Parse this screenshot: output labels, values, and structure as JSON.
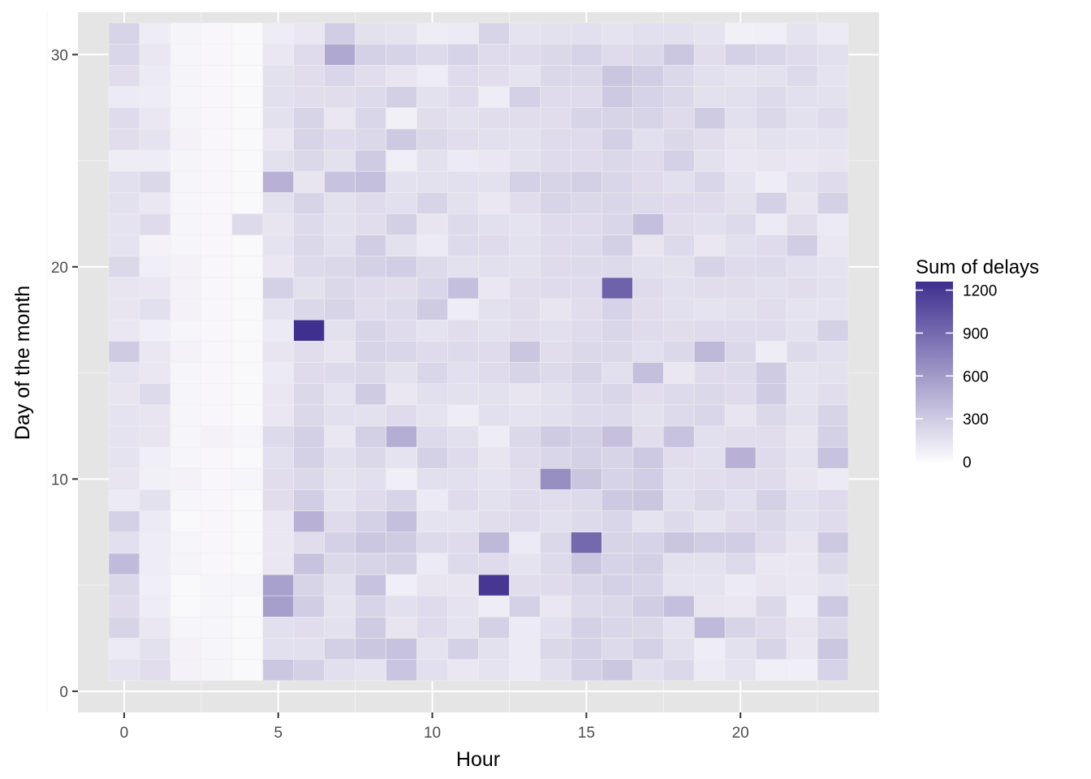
{
  "chart_data": {
    "type": "heatmap",
    "title": "",
    "xlabel": "Hour",
    "ylabel": "Day of the month",
    "x": [
      0,
      1,
      2,
      3,
      4,
      5,
      6,
      7,
      8,
      9,
      10,
      11,
      12,
      13,
      14,
      15,
      16,
      17,
      18,
      19,
      20,
      21,
      22,
      23
    ],
    "y": [
      1,
      2,
      3,
      4,
      5,
      6,
      7,
      8,
      9,
      10,
      11,
      12,
      13,
      14,
      15,
      16,
      17,
      18,
      19,
      20,
      21,
      22,
      23,
      24,
      25,
      26,
      27,
      28,
      29,
      30,
      31
    ],
    "xlim": [
      -1.5,
      24.5
    ],
    "ylim": [
      -1,
      32
    ],
    "x_ticks": [
      0,
      5,
      10,
      15,
      20
    ],
    "x_tick_labels": [
      "0",
      "5",
      "10",
      "15",
      "20"
    ],
    "y_ticks": [
      0,
      10,
      20,
      30
    ],
    "y_tick_labels": [
      "0",
      "10",
      "20",
      "30"
    ],
    "grid": true,
    "legend": {
      "title": "Sum of delays",
      "placement": "right",
      "ticks": [
        0,
        300,
        600,
        900,
        1200
      ],
      "tick_labels": [
        "0",
        "300",
        "600",
        "900",
        "1200"
      ],
      "range": [
        0,
        1260
      ],
      "low_color": "#fcfbfd",
      "high_color": "#3f2f8f"
    },
    "colors": {
      "panel_background": "#e5e5e5",
      "grid_major": "#ffffff",
      "tile_border": "#eeeeee",
      "tick_text": "#4d4d4d"
    },
    "values": [
      [
        100,
        130,
        30,
        25,
        10,
        250,
        200,
        120,
        100,
        270,
        120,
        80,
        100,
        70,
        120,
        200,
        250,
        120,
        160,
        70,
        100,
        50,
        50,
        190
      ],
      [
        70,
        110,
        30,
        20,
        10,
        120,
        120,
        210,
        250,
        280,
        100,
        200,
        110,
        70,
        160,
        200,
        150,
        200,
        120,
        60,
        110,
        180,
        80,
        250
      ],
      [
        180,
        80,
        20,
        20,
        10,
        120,
        130,
        110,
        230,
        90,
        140,
        100,
        200,
        70,
        120,
        200,
        170,
        160,
        100,
        330,
        180,
        140,
        90,
        160
      ],
      [
        140,
        60,
        10,
        20,
        10,
        500,
        220,
        100,
        180,
        120,
        140,
        100,
        60,
        200,
        80,
        150,
        160,
        220,
        300,
        90,
        80,
        160,
        60,
        240
      ],
      [
        160,
        50,
        10,
        20,
        20,
        480,
        180,
        120,
        280,
        50,
        90,
        90,
        1200,
        130,
        140,
        170,
        200,
        180,
        100,
        100,
        70,
        90,
        80,
        100
      ],
      [
        320,
        60,
        25,
        15,
        10,
        80,
        280,
        160,
        180,
        200,
        70,
        150,
        140,
        100,
        150,
        250,
        190,
        210,
        110,
        110,
        150,
        80,
        80,
        160
      ],
      [
        120,
        60,
        20,
        15,
        10,
        80,
        130,
        200,
        250,
        230,
        150,
        140,
        340,
        70,
        160,
        850,
        180,
        190,
        260,
        220,
        220,
        140,
        90,
        240
      ],
      [
        200,
        70,
        10,
        15,
        10,
        80,
        380,
        140,
        200,
        300,
        100,
        100,
        130,
        140,
        120,
        150,
        170,
        100,
        150,
        100,
        140,
        160,
        120,
        140
      ],
      [
        70,
        110,
        20,
        15,
        10,
        130,
        220,
        100,
        140,
        180,
        70,
        140,
        110,
        140,
        130,
        150,
        240,
        260,
        120,
        160,
        120,
        200,
        120,
        140
      ],
      [
        90,
        40,
        30,
        15,
        20,
        130,
        160,
        100,
        120,
        50,
        120,
        120,
        100,
        130,
        600,
        260,
        190,
        220,
        120,
        130,
        140,
        140,
        90,
        70
      ],
      [
        100,
        50,
        20,
        15,
        10,
        120,
        200,
        120,
        160,
        100,
        200,
        140,
        90,
        140,
        170,
        200,
        180,
        240,
        130,
        120,
        380,
        140,
        100,
        280
      ],
      [
        100,
        90,
        20,
        30,
        20,
        150,
        210,
        80,
        210,
        400,
        150,
        120,
        60,
        160,
        230,
        200,
        290,
        130,
        280,
        120,
        130,
        130,
        90,
        200
      ],
      [
        100,
        90,
        20,
        15,
        10,
        80,
        160,
        120,
        110,
        140,
        100,
        60,
        120,
        100,
        120,
        150,
        150,
        110,
        150,
        170,
        90,
        160,
        110,
        180
      ],
      [
        90,
        150,
        20,
        15,
        10,
        80,
        160,
        100,
        230,
        80,
        120,
        110,
        110,
        90,
        110,
        150,
        170,
        130,
        150,
        160,
        140,
        230,
        100,
        130
      ],
      [
        100,
        80,
        20,
        15,
        10,
        70,
        140,
        150,
        160,
        110,
        170,
        120,
        140,
        180,
        150,
        180,
        120,
        300,
        80,
        140,
        150,
        230,
        100,
        110
      ],
      [
        230,
        80,
        30,
        15,
        10,
        90,
        130,
        90,
        180,
        170,
        140,
        150,
        140,
        260,
        130,
        160,
        160,
        120,
        160,
        340,
        160,
        60,
        150,
        120
      ],
      [
        80,
        50,
        20,
        15,
        10,
        70,
        1260,
        110,
        180,
        140,
        100,
        130,
        110,
        130,
        120,
        140,
        170,
        140,
        130,
        140,
        140,
        140,
        110,
        200
      ],
      [
        90,
        120,
        30,
        15,
        10,
        100,
        160,
        180,
        130,
        150,
        230,
        60,
        110,
        130,
        90,
        130,
        190,
        130,
        120,
        100,
        110,
        130,
        100,
        100
      ],
      [
        90,
        80,
        30,
        15,
        10,
        200,
        110,
        160,
        140,
        130,
        170,
        300,
        80,
        130,
        140,
        140,
        900,
        140,
        120,
        130,
        130,
        120,
        130,
        110
      ],
      [
        160,
        50,
        30,
        15,
        10,
        80,
        150,
        160,
        200,
        220,
        150,
        110,
        120,
        110,
        140,
        150,
        150,
        120,
        110,
        190,
        140,
        150,
        120,
        100
      ],
      [
        100,
        30,
        20,
        15,
        10,
        100,
        160,
        120,
        220,
        110,
        70,
        150,
        140,
        110,
        140,
        150,
        210,
        90,
        150,
        80,
        120,
        140,
        220,
        80
      ],
      [
        100,
        140,
        20,
        15,
        150,
        90,
        150,
        110,
        130,
        210,
        90,
        150,
        120,
        100,
        140,
        140,
        170,
        300,
        130,
        120,
        150,
        70,
        130,
        70
      ],
      [
        110,
        80,
        20,
        15,
        10,
        110,
        180,
        110,
        140,
        120,
        180,
        110,
        80,
        130,
        180,
        160,
        170,
        150,
        140,
        140,
        110,
        200,
        90,
        200
      ],
      [
        120,
        160,
        20,
        15,
        10,
        380,
        90,
        280,
        300,
        110,
        110,
        120,
        110,
        200,
        180,
        210,
        170,
        140,
        120,
        170,
        100,
        60,
        110,
        140
      ],
      [
        60,
        60,
        25,
        15,
        10,
        110,
        160,
        110,
        230,
        50,
        110,
        70,
        80,
        110,
        140,
        140,
        160,
        140,
        200,
        110,
        80,
        90,
        80,
        90
      ],
      [
        130,
        100,
        30,
        15,
        10,
        80,
        180,
        140,
        160,
        240,
        160,
        130,
        120,
        110,
        140,
        140,
        210,
        120,
        160,
        130,
        90,
        110,
        100,
        100
      ],
      [
        140,
        80,
        25,
        15,
        10,
        110,
        180,
        80,
        170,
        40,
        130,
        110,
        130,
        130,
        130,
        180,
        180,
        180,
        140,
        230,
        120,
        160,
        110,
        140
      ],
      [
        70,
        60,
        20,
        15,
        10,
        120,
        130,
        130,
        150,
        210,
        110,
        140,
        60,
        200,
        140,
        140,
        240,
        190,
        160,
        110,
        120,
        150,
        120,
        110
      ],
      [
        130,
        70,
        25,
        15,
        10,
        110,
        130,
        170,
        130,
        90,
        60,
        140,
        130,
        100,
        160,
        160,
        260,
        220,
        160,
        120,
        100,
        110,
        150,
        100
      ],
      [
        170,
        80,
        20,
        15,
        10,
        80,
        140,
        440,
        200,
        190,
        150,
        190,
        140,
        140,
        160,
        190,
        140,
        160,
        250,
        130,
        200,
        170,
        140,
        120
      ],
      [
        180,
        60,
        25,
        15,
        10,
        60,
        80,
        220,
        110,
        100,
        60,
        70,
        180,
        100,
        110,
        120,
        100,
        120,
        120,
        100,
        40,
        50,
        100,
        70
      ]
    ]
  }
}
